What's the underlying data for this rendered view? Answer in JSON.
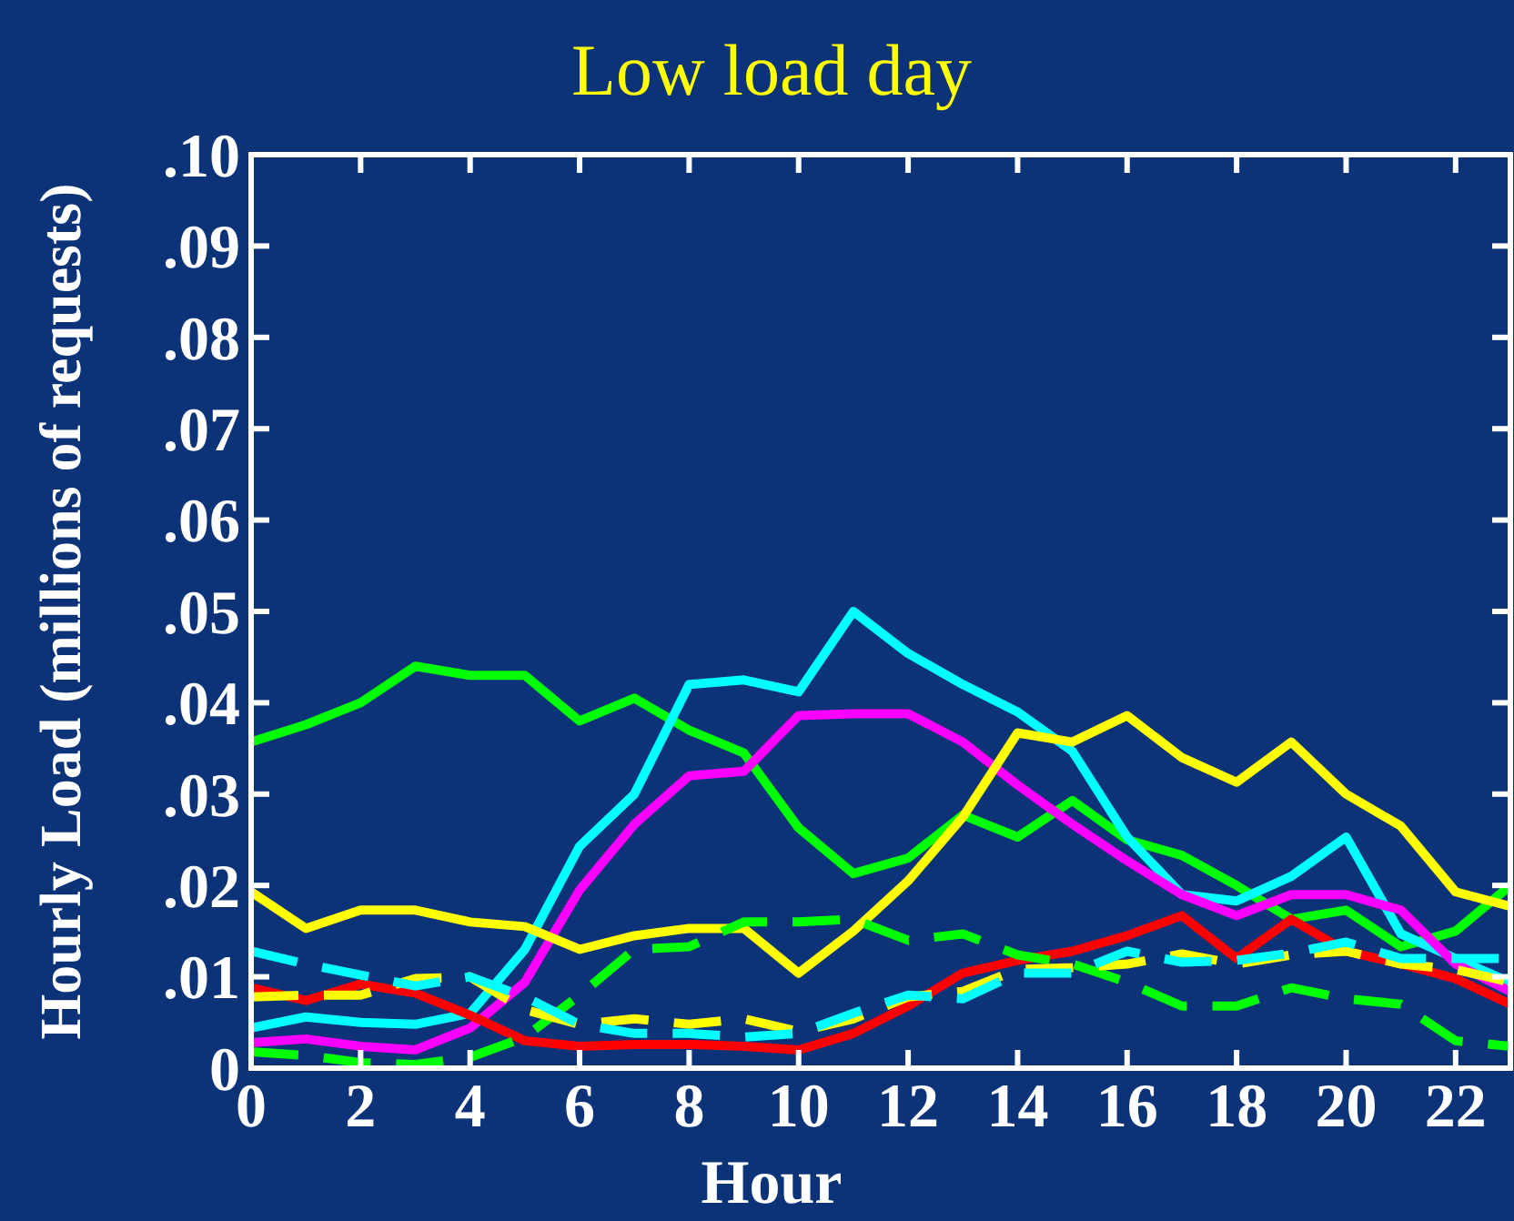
{
  "chart_data": {
    "type": "line",
    "title": "Low load day",
    "xlabel": "Hour",
    "ylabel": "Hourly Load (millions of requests)",
    "x": [
      0,
      1,
      2,
      3,
      4,
      5,
      6,
      7,
      8,
      9,
      10,
      11,
      12,
      13,
      14,
      15,
      16,
      17,
      18,
      19,
      20,
      21,
      22,
      23
    ],
    "xlim": [
      0,
      23
    ],
    "xticks": [
      0,
      2,
      4,
      6,
      8,
      10,
      12,
      14,
      16,
      18,
      20,
      22
    ],
    "ylim": [
      0,
      0.1
    ],
    "yticks": [
      {
        "value": 0,
        "label": "0"
      },
      {
        "value": 0.01,
        "label": ".01"
      },
      {
        "value": 0.02,
        "label": ".02"
      },
      {
        "value": 0.03,
        "label": ".03"
      },
      {
        "value": 0.04,
        "label": ".04"
      },
      {
        "value": 0.05,
        "label": ".05"
      },
      {
        "value": 0.06,
        "label": ".06"
      },
      {
        "value": 0.07,
        "label": ".07"
      },
      {
        "value": 0.08,
        "label": ".08"
      },
      {
        "value": 0.09,
        "label": ".09"
      },
      {
        "value": 0.1,
        "label": ".10"
      }
    ],
    "grid": false,
    "marker": "none",
    "series": [
      {
        "color": "#00ff00",
        "line_style": "solid",
        "values": [
          0.0357,
          0.0376,
          0.04,
          0.044,
          0.043,
          0.043,
          0.038,
          0.0405,
          0.037,
          0.0345,
          0.0263,
          0.0213,
          0.023,
          0.0277,
          0.0253,
          0.0293,
          0.025,
          0.0233,
          0.02,
          0.0163,
          0.0173,
          0.0133,
          0.015,
          0.02
        ]
      },
      {
        "color": "#00ffff",
        "line_style": "solid",
        "values": [
          0.0044,
          0.0056,
          0.005,
          0.0048,
          0.006,
          0.013,
          0.0243,
          0.03,
          0.042,
          0.0425,
          0.0412,
          0.05,
          0.0454,
          0.042,
          0.039,
          0.0347,
          0.0253,
          0.019,
          0.0183,
          0.021,
          0.0253,
          0.0147,
          0.012,
          0.0094
        ]
      },
      {
        "color": "#ff00ff",
        "line_style": "solid",
        "values": [
          0.0028,
          0.0032,
          0.0024,
          0.002,
          0.0044,
          0.0094,
          0.0195,
          0.0267,
          0.032,
          0.0325,
          0.0386,
          0.0388,
          0.0388,
          0.0357,
          0.031,
          0.0267,
          0.0227,
          0.019,
          0.0167,
          0.019,
          0.019,
          0.0173,
          0.0114,
          0.0084
        ]
      },
      {
        "color": "#ffff00",
        "line_style": "solid",
        "values": [
          0.0193,
          0.0153,
          0.0173,
          0.0173,
          0.016,
          0.0155,
          0.013,
          0.0145,
          0.0153,
          0.0153,
          0.0104,
          0.015,
          0.0205,
          0.0275,
          0.0367,
          0.0357,
          0.0386,
          0.034,
          0.0313,
          0.0357,
          0.03,
          0.0265,
          0.0193,
          0.0177
        ]
      },
      {
        "color": "#ff0000",
        "line_style": "solid",
        "values": [
          0.0088,
          0.0074,
          0.0092,
          0.0082,
          0.0058,
          0.003,
          0.0024,
          0.0026,
          0.0026,
          0.0024,
          0.002,
          0.0038,
          0.0068,
          0.0104,
          0.0118,
          0.0128,
          0.0145,
          0.0167,
          0.012,
          0.0163,
          0.0128,
          0.0114,
          0.0098,
          0.007
        ]
      },
      {
        "color": "#00ff00",
        "line_style": "dashed",
        "values": [
          0.0018,
          0.0014,
          0.0006,
          0.0004,
          0.0012,
          0.0034,
          0.008,
          0.013,
          0.0133,
          0.016,
          0.016,
          0.0163,
          0.014,
          0.0147,
          0.0124,
          0.0114,
          0.0094,
          0.0068,
          0.0068,
          0.0088,
          0.0076,
          0.007,
          0.003,
          0.0024
        ]
      },
      {
        "color": "#ffff00",
        "line_style": "dashed",
        "values": [
          0.0078,
          0.008,
          0.008,
          0.0098,
          0.01,
          0.0064,
          0.0048,
          0.0054,
          0.0048,
          0.0054,
          0.004,
          0.0054,
          0.0078,
          0.0084,
          0.0108,
          0.011,
          0.0114,
          0.0125,
          0.0114,
          0.0124,
          0.0128,
          0.0114,
          0.0108,
          0.0094
        ]
      },
      {
        "color": "#00ffff",
        "line_style": "dashed",
        "values": [
          0.0128,
          0.0114,
          0.0102,
          0.009,
          0.01,
          0.0078,
          0.0048,
          0.0038,
          0.0038,
          0.0034,
          0.0038,
          0.006,
          0.008,
          0.0076,
          0.0104,
          0.0104,
          0.0128,
          0.0116,
          0.0118,
          0.0126,
          0.0138,
          0.012,
          0.012,
          0.012
        ]
      }
    ]
  }
}
